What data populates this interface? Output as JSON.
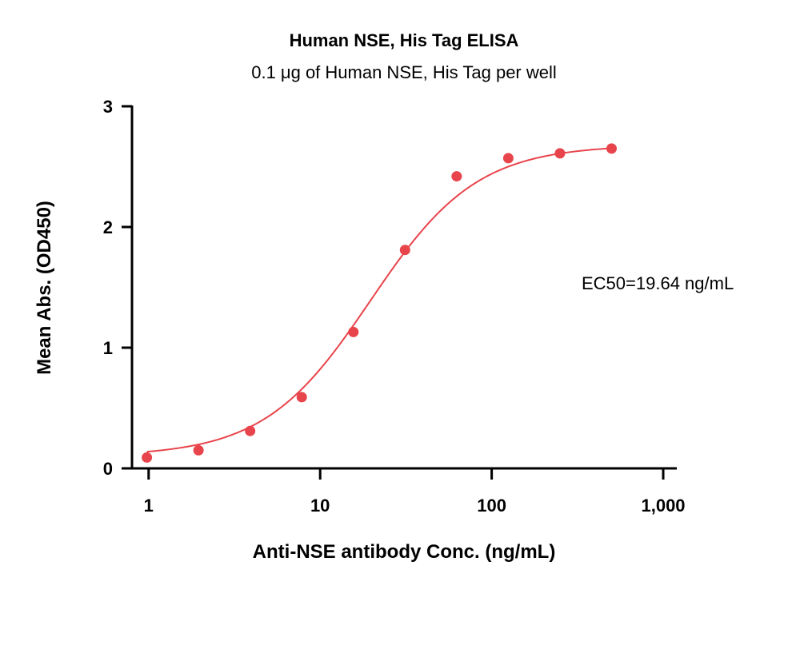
{
  "chart_data": {
    "type": "scatter",
    "title": "Human NSE, His Tag ELISA",
    "subtitle": "0.1 μg of Human NSE, His Tag per well",
    "xlabel": "Anti-NSE antibody Conc. (ng/mL)",
    "ylabel": "Mean Abs. (OD450)",
    "x_scale": "log",
    "xlim": [
      0.8,
      1200
    ],
    "ylim": [
      0,
      3
    ],
    "x_ticks": [
      1,
      10,
      100,
      1000
    ],
    "x_tick_labels": [
      "1",
      "10",
      "100",
      "1,000"
    ],
    "y_ticks": [
      0,
      1,
      2,
      3
    ],
    "y_tick_labels": [
      "0",
      "1",
      "2",
      "3"
    ],
    "grid": false,
    "series": [
      {
        "color": "#e8444b",
        "x": [
          0.977,
          1.953,
          3.906,
          7.813,
          15.625,
          31.25,
          62.5,
          125,
          250,
          500
        ],
        "y": [
          0.09,
          0.15,
          0.31,
          0.59,
          1.13,
          1.81,
          2.42,
          2.57,
          2.61,
          2.65
        ]
      }
    ],
    "fit_curve": {
      "model": "4PL",
      "bottom": 0.1,
      "top": 2.68,
      "ec50": 19.64,
      "hill": 1.4,
      "color": "#e8444b"
    },
    "annotation": "EC50=19.64 ng/mL"
  }
}
